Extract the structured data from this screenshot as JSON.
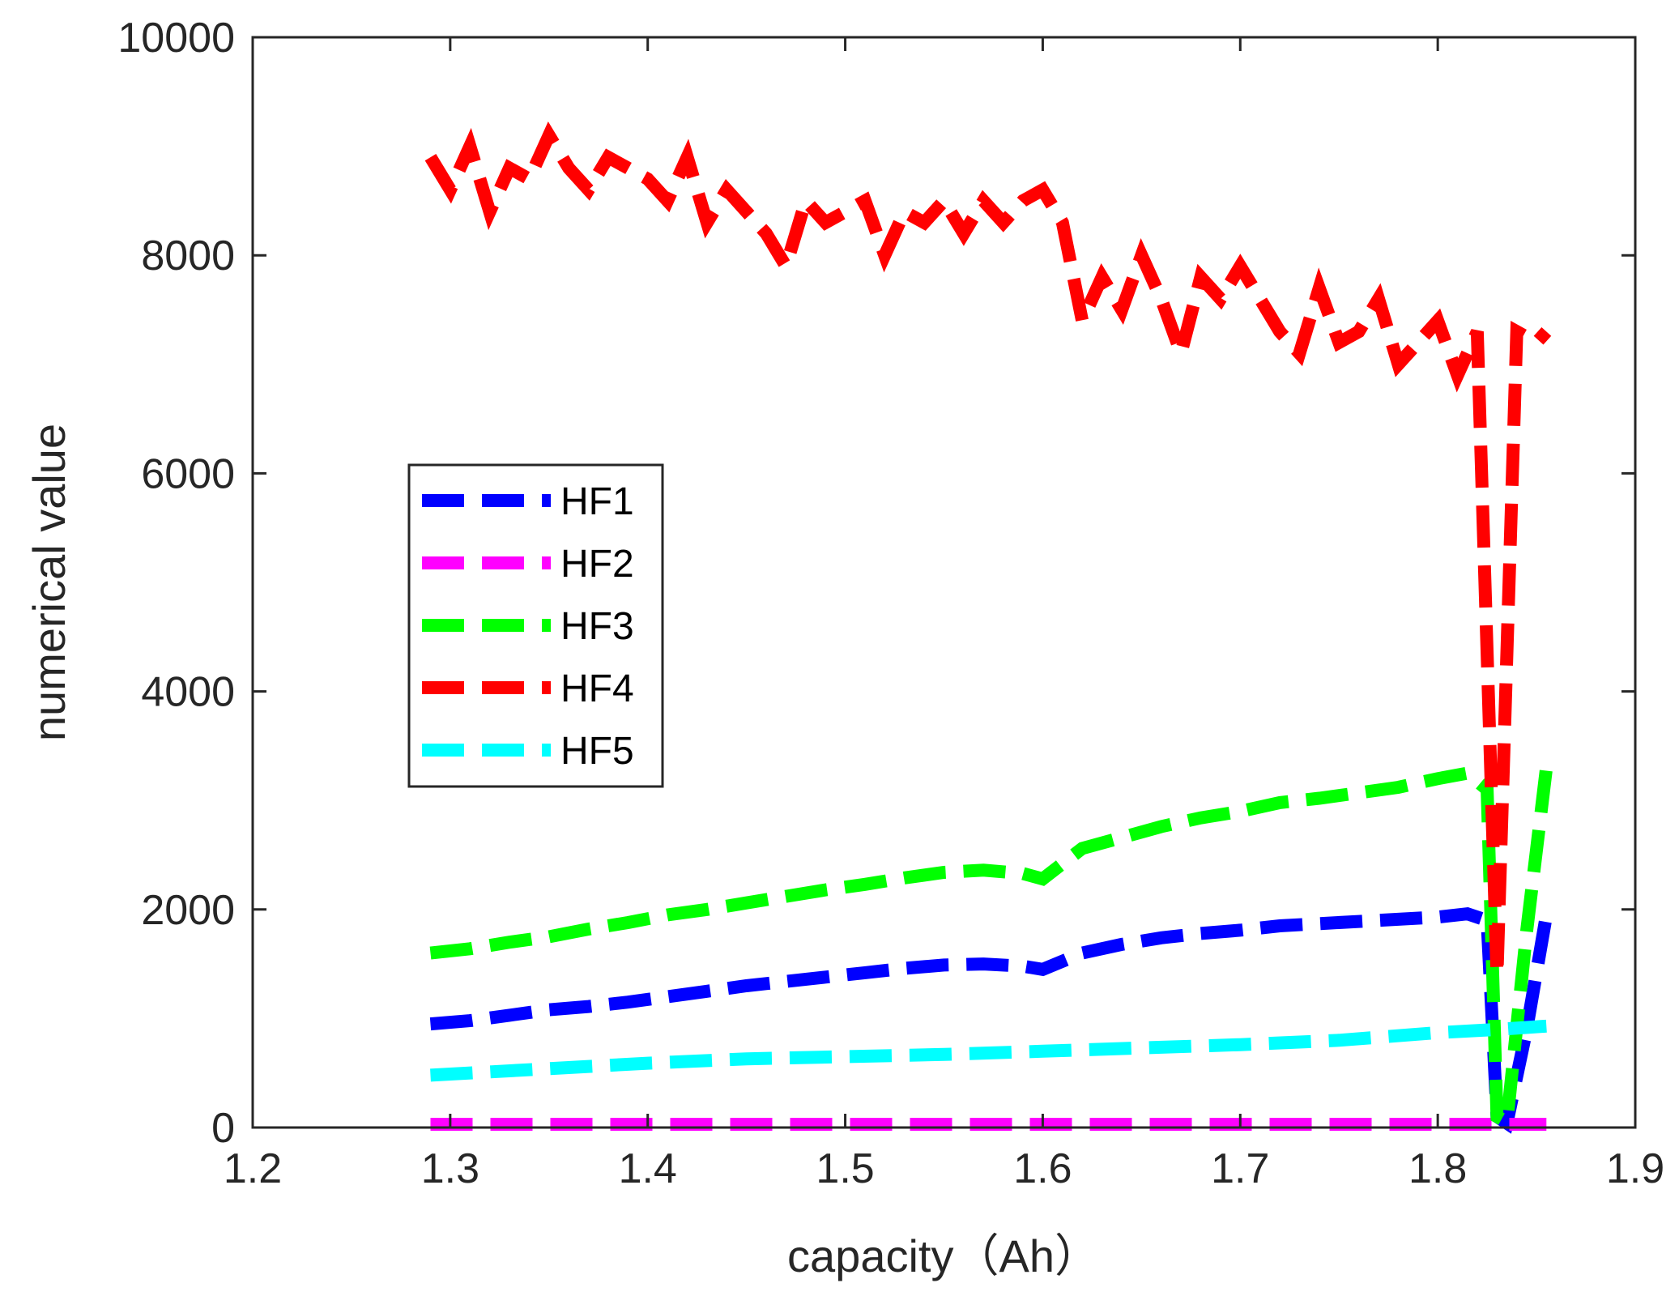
{
  "chart_data": {
    "type": "line",
    "title": "",
    "xlabel": "capacity（Ah）",
    "ylabel": "numerical value",
    "xlim": [
      1.2,
      1.9
    ],
    "ylim": [
      0,
      10000
    ],
    "xticks": [
      1.2,
      1.3,
      1.4,
      1.5,
      1.6,
      1.7,
      1.8,
      1.9
    ],
    "yticks": [
      0,
      2000,
      4000,
      6000,
      8000,
      10000
    ],
    "xtick_labels": [
      "1.2",
      "1.3",
      "1.4",
      "1.5",
      "1.6",
      "1.7",
      "1.8",
      "1.9"
    ],
    "ytick_labels": [
      "0",
      "2000",
      "4000",
      "6000",
      "8000",
      "10000"
    ],
    "legend_position": "center-left",
    "grid": false,
    "series": [
      {
        "name": "HF1",
        "color": "#0000ff",
        "x": [
          1.29,
          1.31,
          1.33,
          1.35,
          1.37,
          1.39,
          1.41,
          1.43,
          1.45,
          1.47,
          1.49,
          1.51,
          1.53,
          1.55,
          1.57,
          1.59,
          1.6,
          1.62,
          1.64,
          1.66,
          1.68,
          1.7,
          1.72,
          1.74,
          1.76,
          1.78,
          1.8,
          1.815,
          1.825,
          1.83,
          1.835,
          1.845,
          1.855
        ],
        "y": [
          950,
          980,
          1030,
          1080,
          1110,
          1150,
          1200,
          1250,
          1300,
          1340,
          1380,
          1420,
          1460,
          1490,
          1500,
          1480,
          1450,
          1600,
          1680,
          1740,
          1780,
          1810,
          1850,
          1870,
          1890,
          1910,
          1930,
          1960,
          1900,
          100,
          40,
          900,
          1950
        ]
      },
      {
        "name": "HF2",
        "color": "#ff00ff",
        "x": [
          1.29,
          1.855
        ],
        "y": [
          30,
          30
        ]
      },
      {
        "name": "HF3",
        "color": "#00ff00",
        "x": [
          1.29,
          1.31,
          1.33,
          1.35,
          1.37,
          1.39,
          1.41,
          1.43,
          1.45,
          1.47,
          1.49,
          1.51,
          1.53,
          1.55,
          1.57,
          1.59,
          1.6,
          1.62,
          1.64,
          1.66,
          1.68,
          1.7,
          1.72,
          1.74,
          1.76,
          1.78,
          1.8,
          1.815,
          1.825,
          1.83,
          1.835,
          1.845,
          1.855
        ],
        "y": [
          1600,
          1640,
          1700,
          1750,
          1820,
          1880,
          1950,
          2000,
          2060,
          2120,
          2180,
          2230,
          2290,
          2340,
          2360,
          2330,
          2280,
          2560,
          2660,
          2760,
          2840,
          2900,
          2980,
          3020,
          3070,
          3120,
          3200,
          3250,
          3100,
          100,
          50,
          1800,
          3300
        ]
      },
      {
        "name": "HF4",
        "color": "#ff0000",
        "x": [
          1.29,
          1.3,
          1.31,
          1.32,
          1.33,
          1.34,
          1.35,
          1.36,
          1.37,
          1.38,
          1.39,
          1.4,
          1.41,
          1.42,
          1.43,
          1.44,
          1.45,
          1.46,
          1.47,
          1.48,
          1.49,
          1.5,
          1.51,
          1.52,
          1.53,
          1.54,
          1.55,
          1.56,
          1.57,
          1.58,
          1.59,
          1.6,
          1.61,
          1.62,
          1.63,
          1.64,
          1.65,
          1.66,
          1.67,
          1.68,
          1.69,
          1.7,
          1.71,
          1.72,
          1.73,
          1.74,
          1.75,
          1.76,
          1.77,
          1.78,
          1.79,
          1.8,
          1.81,
          1.82,
          1.83,
          1.84,
          1.85,
          1.855
        ],
        "y": [
          8900,
          8600,
          9000,
          8400,
          8800,
          8700,
          9100,
          8800,
          8600,
          8900,
          8800,
          8700,
          8500,
          8900,
          8300,
          8600,
          8400,
          8200,
          7900,
          8500,
          8300,
          8400,
          8500,
          8000,
          8400,
          8300,
          8500,
          8200,
          8500,
          8300,
          8500,
          8600,
          8300,
          7400,
          7800,
          7500,
          8000,
          7600,
          7100,
          7800,
          7600,
          7900,
          7600,
          7300,
          7100,
          7700,
          7200,
          7300,
          7600,
          7000,
          7200,
          7400,
          6900,
          7300,
          1400,
          7300,
          7200,
          7300
        ]
      },
      {
        "name": "HF5",
        "color": "#00ffff",
        "x": [
          1.29,
          1.35,
          1.4,
          1.45,
          1.5,
          1.55,
          1.6,
          1.65,
          1.7,
          1.75,
          1.8,
          1.83,
          1.855
        ],
        "y": [
          480,
          540,
          590,
          630,
          650,
          670,
          700,
          730,
          760,
          800,
          870,
          900,
          930
        ]
      }
    ]
  }
}
